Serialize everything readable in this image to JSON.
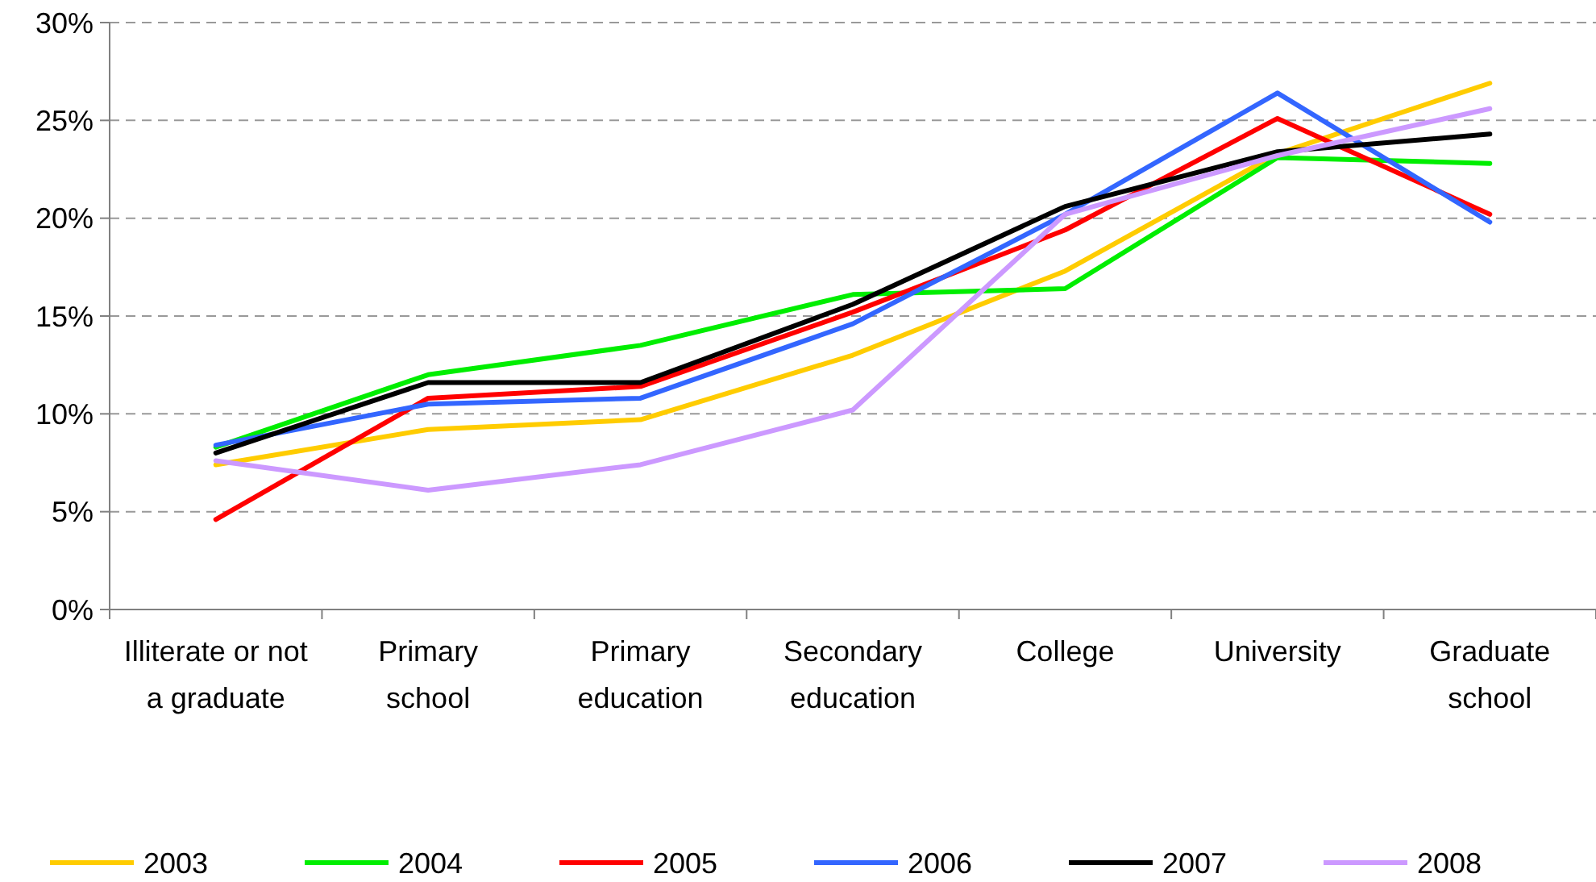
{
  "chart_data": {
    "type": "line",
    "categories": [
      "Illiterate or not a graduate",
      "Primary school",
      "Primary education",
      "Secondary education",
      "College",
      "University",
      "Graduate school"
    ],
    "series": [
      {
        "name": "2003",
        "color": "#ffcc00",
        "values": [
          7.4,
          9.2,
          9.7,
          13.0,
          17.3,
          23.3,
          26.9
        ]
      },
      {
        "name": "2004",
        "color": "#00ee00",
        "values": [
          8.3,
          12.0,
          13.5,
          16.1,
          16.4,
          23.1,
          22.8
        ]
      },
      {
        "name": "2005",
        "color": "#ff0000",
        "values": [
          4.6,
          10.8,
          11.4,
          15.2,
          19.4,
          25.1,
          20.2
        ]
      },
      {
        "name": "2006",
        "color": "#3366ff",
        "values": [
          8.4,
          10.5,
          10.8,
          14.6,
          20.2,
          26.4,
          19.8
        ]
      },
      {
        "name": "2007",
        "color": "#000000",
        "values": [
          8.0,
          11.6,
          11.6,
          15.6,
          20.6,
          23.4,
          24.3
        ]
      },
      {
        "name": "2008",
        "color": "#cc99ff",
        "values": [
          7.6,
          6.1,
          7.4,
          10.2,
          20.2,
          23.2,
          25.6
        ]
      }
    ],
    "ylim": [
      0,
      30
    ],
    "yticks": [
      {
        "value": 0,
        "label": "0%"
      },
      {
        "value": 5,
        "label": "5%"
      },
      {
        "value": 10,
        "label": "10%"
      },
      {
        "value": 15,
        "label": "15%"
      },
      {
        "value": 20,
        "label": "20%"
      },
      {
        "value": 25,
        "label": "25%"
      },
      {
        "value": 30,
        "label": "30%"
      }
    ],
    "grid": "y",
    "legend": "bottom",
    "marker": "none",
    "line_style": "solid"
  }
}
